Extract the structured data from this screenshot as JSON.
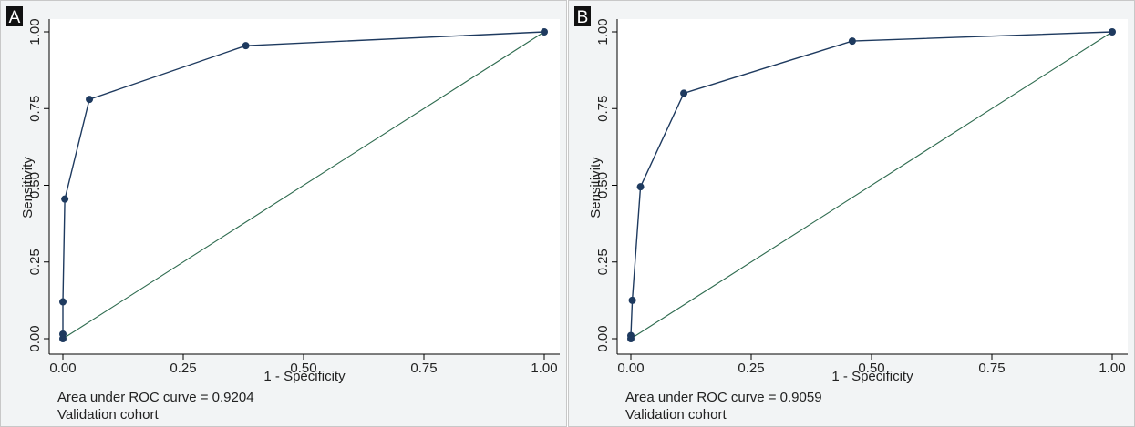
{
  "colors": {
    "roc_curve": "#1e3a5f",
    "reference_line": "#2e6b4f",
    "plot_background": "#ffffff",
    "panel_background": "#f2f4f5",
    "label_box": "#111111"
  },
  "chart_data": [
    {
      "panel_label": "A",
      "type": "line",
      "xlabel": "1 - Specificity",
      "ylabel": "Sensitivity",
      "xlim": [
        0,
        1
      ],
      "ylim": [
        0,
        1
      ],
      "x_ticks": [
        "0.00",
        "0.25",
        "0.50",
        "0.75",
        "1.00"
      ],
      "y_ticks": [
        "0.00",
        "0.25",
        "0.50",
        "0.75",
        "1.00"
      ],
      "grid": false,
      "series": [
        {
          "x": [
            0.0,
            0.0,
            0.0,
            0.004,
            0.055,
            0.38,
            1.0
          ],
          "y": [
            0.0,
            0.015,
            0.12,
            0.455,
            0.78,
            0.955,
            1.0
          ]
        }
      ],
      "reference_line": {
        "x": [
          0,
          1
        ],
        "y": [
          0,
          1
        ]
      },
      "notes": [
        "Area under ROC curve = 0.9204",
        "Validation cohort"
      ]
    },
    {
      "panel_label": "B",
      "type": "line",
      "xlabel": "1 - Specificity",
      "ylabel": "Sensitivity",
      "xlim": [
        0,
        1
      ],
      "ylim": [
        0,
        1
      ],
      "x_ticks": [
        "0.00",
        "0.25",
        "0.50",
        "0.75",
        "1.00"
      ],
      "y_ticks": [
        "0.00",
        "0.25",
        "0.50",
        "0.75",
        "1.00"
      ],
      "grid": false,
      "series": [
        {
          "x": [
            0.0,
            0.0,
            0.003,
            0.02,
            0.11,
            0.46,
            1.0
          ],
          "y": [
            0.0,
            0.01,
            0.125,
            0.495,
            0.8,
            0.97,
            1.0
          ]
        }
      ],
      "reference_line": {
        "x": [
          0,
          1
        ],
        "y": [
          0,
          1
        ]
      },
      "notes": [
        "Area under ROC curve = 0.9059",
        "Validation cohort"
      ]
    }
  ]
}
